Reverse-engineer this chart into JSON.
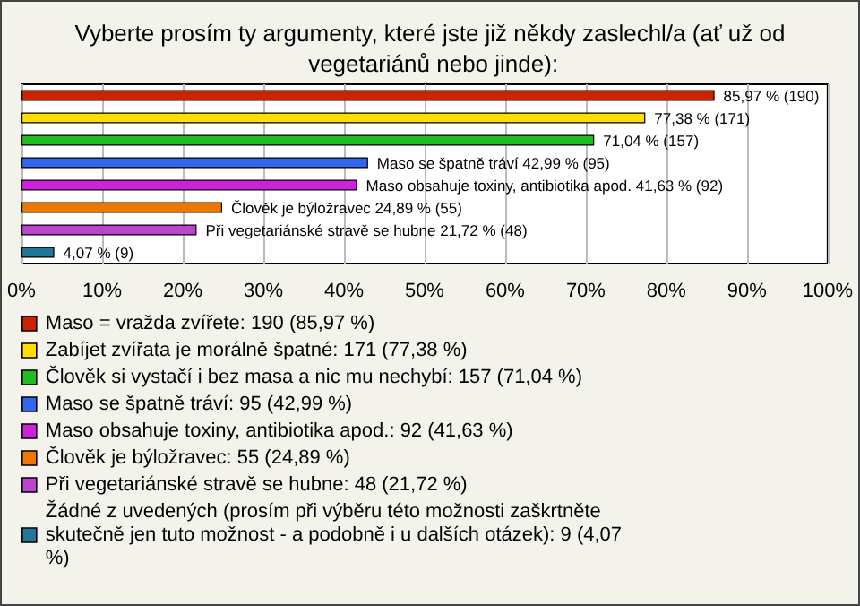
{
  "chart_data": {
    "type": "bar",
    "orientation": "horizontal",
    "title": "Vyberte prosím ty argumenty, které jste již někdy zaslechl/a (ať už od vegetariánů nebo jinde):",
    "categories": [
      null,
      null,
      null,
      null,
      null,
      null,
      null,
      null
    ],
    "series": [
      {
        "name": "Maso = vražda zvířete: 190 (85,97 %)",
        "color": "#cc2200",
        "values": [
          85.97,
          null,
          null,
          null,
          null,
          null,
          null,
          null
        ],
        "value_labels": [
          "85,97 % (190)",
          null,
          null,
          null,
          null,
          null,
          null,
          null
        ]
      },
      {
        "name": "Zabíjet zvířata je morálně špatné: 171 (77,38 %)",
        "color": "#ffdd00",
        "values": [
          null,
          77.38,
          null,
          null,
          null,
          null,
          null,
          null
        ],
        "value_labels": [
          null,
          "77,38 % (171)",
          null,
          null,
          null,
          null,
          null,
          null
        ]
      },
      {
        "name": "Člověk si vystačí i bez masa a nic mu nechybí: 157 (71,04 %)",
        "color": "#22bb22",
        "values": [
          null,
          null,
          71.04,
          null,
          null,
          null,
          null,
          null
        ],
        "value_labels": [
          null,
          null,
          "71,04 % (157)",
          null,
          null,
          null,
          null,
          null
        ]
      },
      {
        "name": "Maso se špatně tráví: 95 (42,99 %)",
        "color": "#3366ee",
        "values": [
          null,
          null,
          null,
          42.99,
          null,
          null,
          null,
          null
        ],
        "value_labels": [
          null,
          null,
          null,
          "Maso se špatně tráví 42,99 % (95)",
          null,
          null,
          null,
          null
        ]
      },
      {
        "name": "Maso obsahuje toxiny, antibiotika apod.: 92 (41,63 %)",
        "color": "#cc22dd",
        "values": [
          null,
          null,
          null,
          null,
          41.63,
          null,
          null,
          null
        ],
        "value_labels": [
          null,
          null,
          null,
          null,
          "Maso obsahuje toxiny, antibiotika apod. 41,63 % (92)",
          null,
          null,
          null
        ]
      },
      {
        "name": "Člověk je býložravec: 55 (24,89 %)",
        "color": "#ee7700",
        "values": [
          null,
          null,
          null,
          null,
          null,
          24.89,
          null,
          null
        ],
        "value_labels": [
          null,
          null,
          null,
          null,
          null,
          "Člověk je býložravec 24,89 % (55)",
          null,
          null
        ]
      },
      {
        "name": "Při vegetariánské stravě se hubne: 48 (21,72 %)",
        "color": "#bb44cc",
        "values": [
          null,
          null,
          null,
          null,
          null,
          null,
          21.72,
          null
        ],
        "value_labels": [
          null,
          null,
          null,
          null,
          null,
          null,
          "Při vegetariánské stravě se hubne 21,72 % (48)",
          null
        ]
      },
      {
        "name": "Žádné z uvedených (prosím při výběru této možnosti zaškrtněte skutečně jen tuto možnost - a podobně i u dalších otázek): 9 (4,07 %)",
        "color": "#227799",
        "values": [
          null,
          null,
          null,
          null,
          null,
          null,
          null,
          4.07
        ],
        "value_labels": [
          null,
          null,
          null,
          null,
          null,
          null,
          null,
          "4,07 % (9)"
        ]
      }
    ],
    "xlim": [
      0,
      100
    ],
    "xticks": [
      {
        "value": 0,
        "label": "0%"
      },
      {
        "value": 10,
        "label": "10%"
      },
      {
        "value": 20,
        "label": "20%"
      },
      {
        "value": 30,
        "label": "30%"
      },
      {
        "value": 40,
        "label": "40%"
      },
      {
        "value": 50,
        "label": "50%"
      },
      {
        "value": 60,
        "label": "60%"
      },
      {
        "value": 70,
        "label": "70%"
      },
      {
        "value": 80,
        "label": "80%"
      },
      {
        "value": 90,
        "label": "90%"
      },
      {
        "value": 100,
        "label": "100%"
      }
    ],
    "grid": "x",
    "legend": "bottom"
  }
}
